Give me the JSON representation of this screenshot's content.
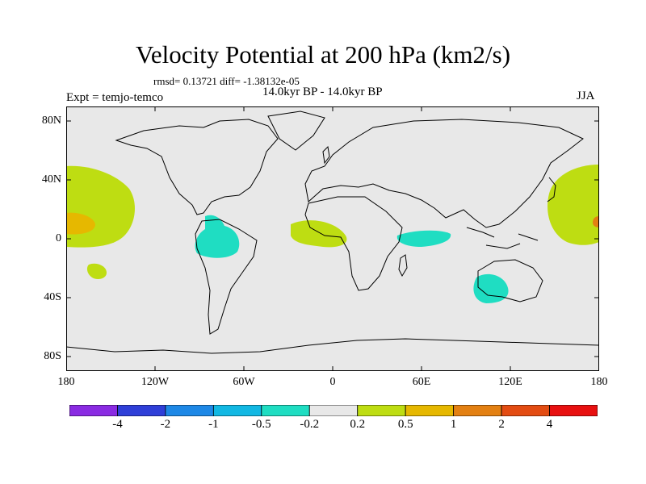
{
  "title": "Velocity Potential at 200 hPa (km2/s)",
  "stats": "rmsd= 0.13721 diff= -1.38132e-05",
  "period": "14.0kyr BP - 14.0kyr BP",
  "expt": "Expt = temjo-temco",
  "season": "JJA",
  "lat_labels": [
    "80N",
    "40N",
    "0",
    "40S",
    "80S"
  ],
  "lon_labels": [
    "180",
    "120W",
    "60W",
    "0",
    "60E",
    "120E",
    "180"
  ],
  "colorbar": {
    "labels": [
      "-4",
      "-2",
      "-1",
      "-0.5",
      "-0.2",
      "0.2",
      "0.5",
      "1",
      "2",
      "4"
    ],
    "colors": [
      "#8a2be2",
      "#2f3fd8",
      "#1e88e6",
      "#12b8e3",
      "#1fddc2",
      "#e8e8e8",
      "#bedd12",
      "#e6b800",
      "#e38012",
      "#e34c12",
      "#e81010"
    ]
  },
  "colors": {
    "background": "#e8e8e8",
    "positive_low": "#bedd12",
    "positive_mid": "#e6b800",
    "negative_low": "#1fddc2"
  }
}
